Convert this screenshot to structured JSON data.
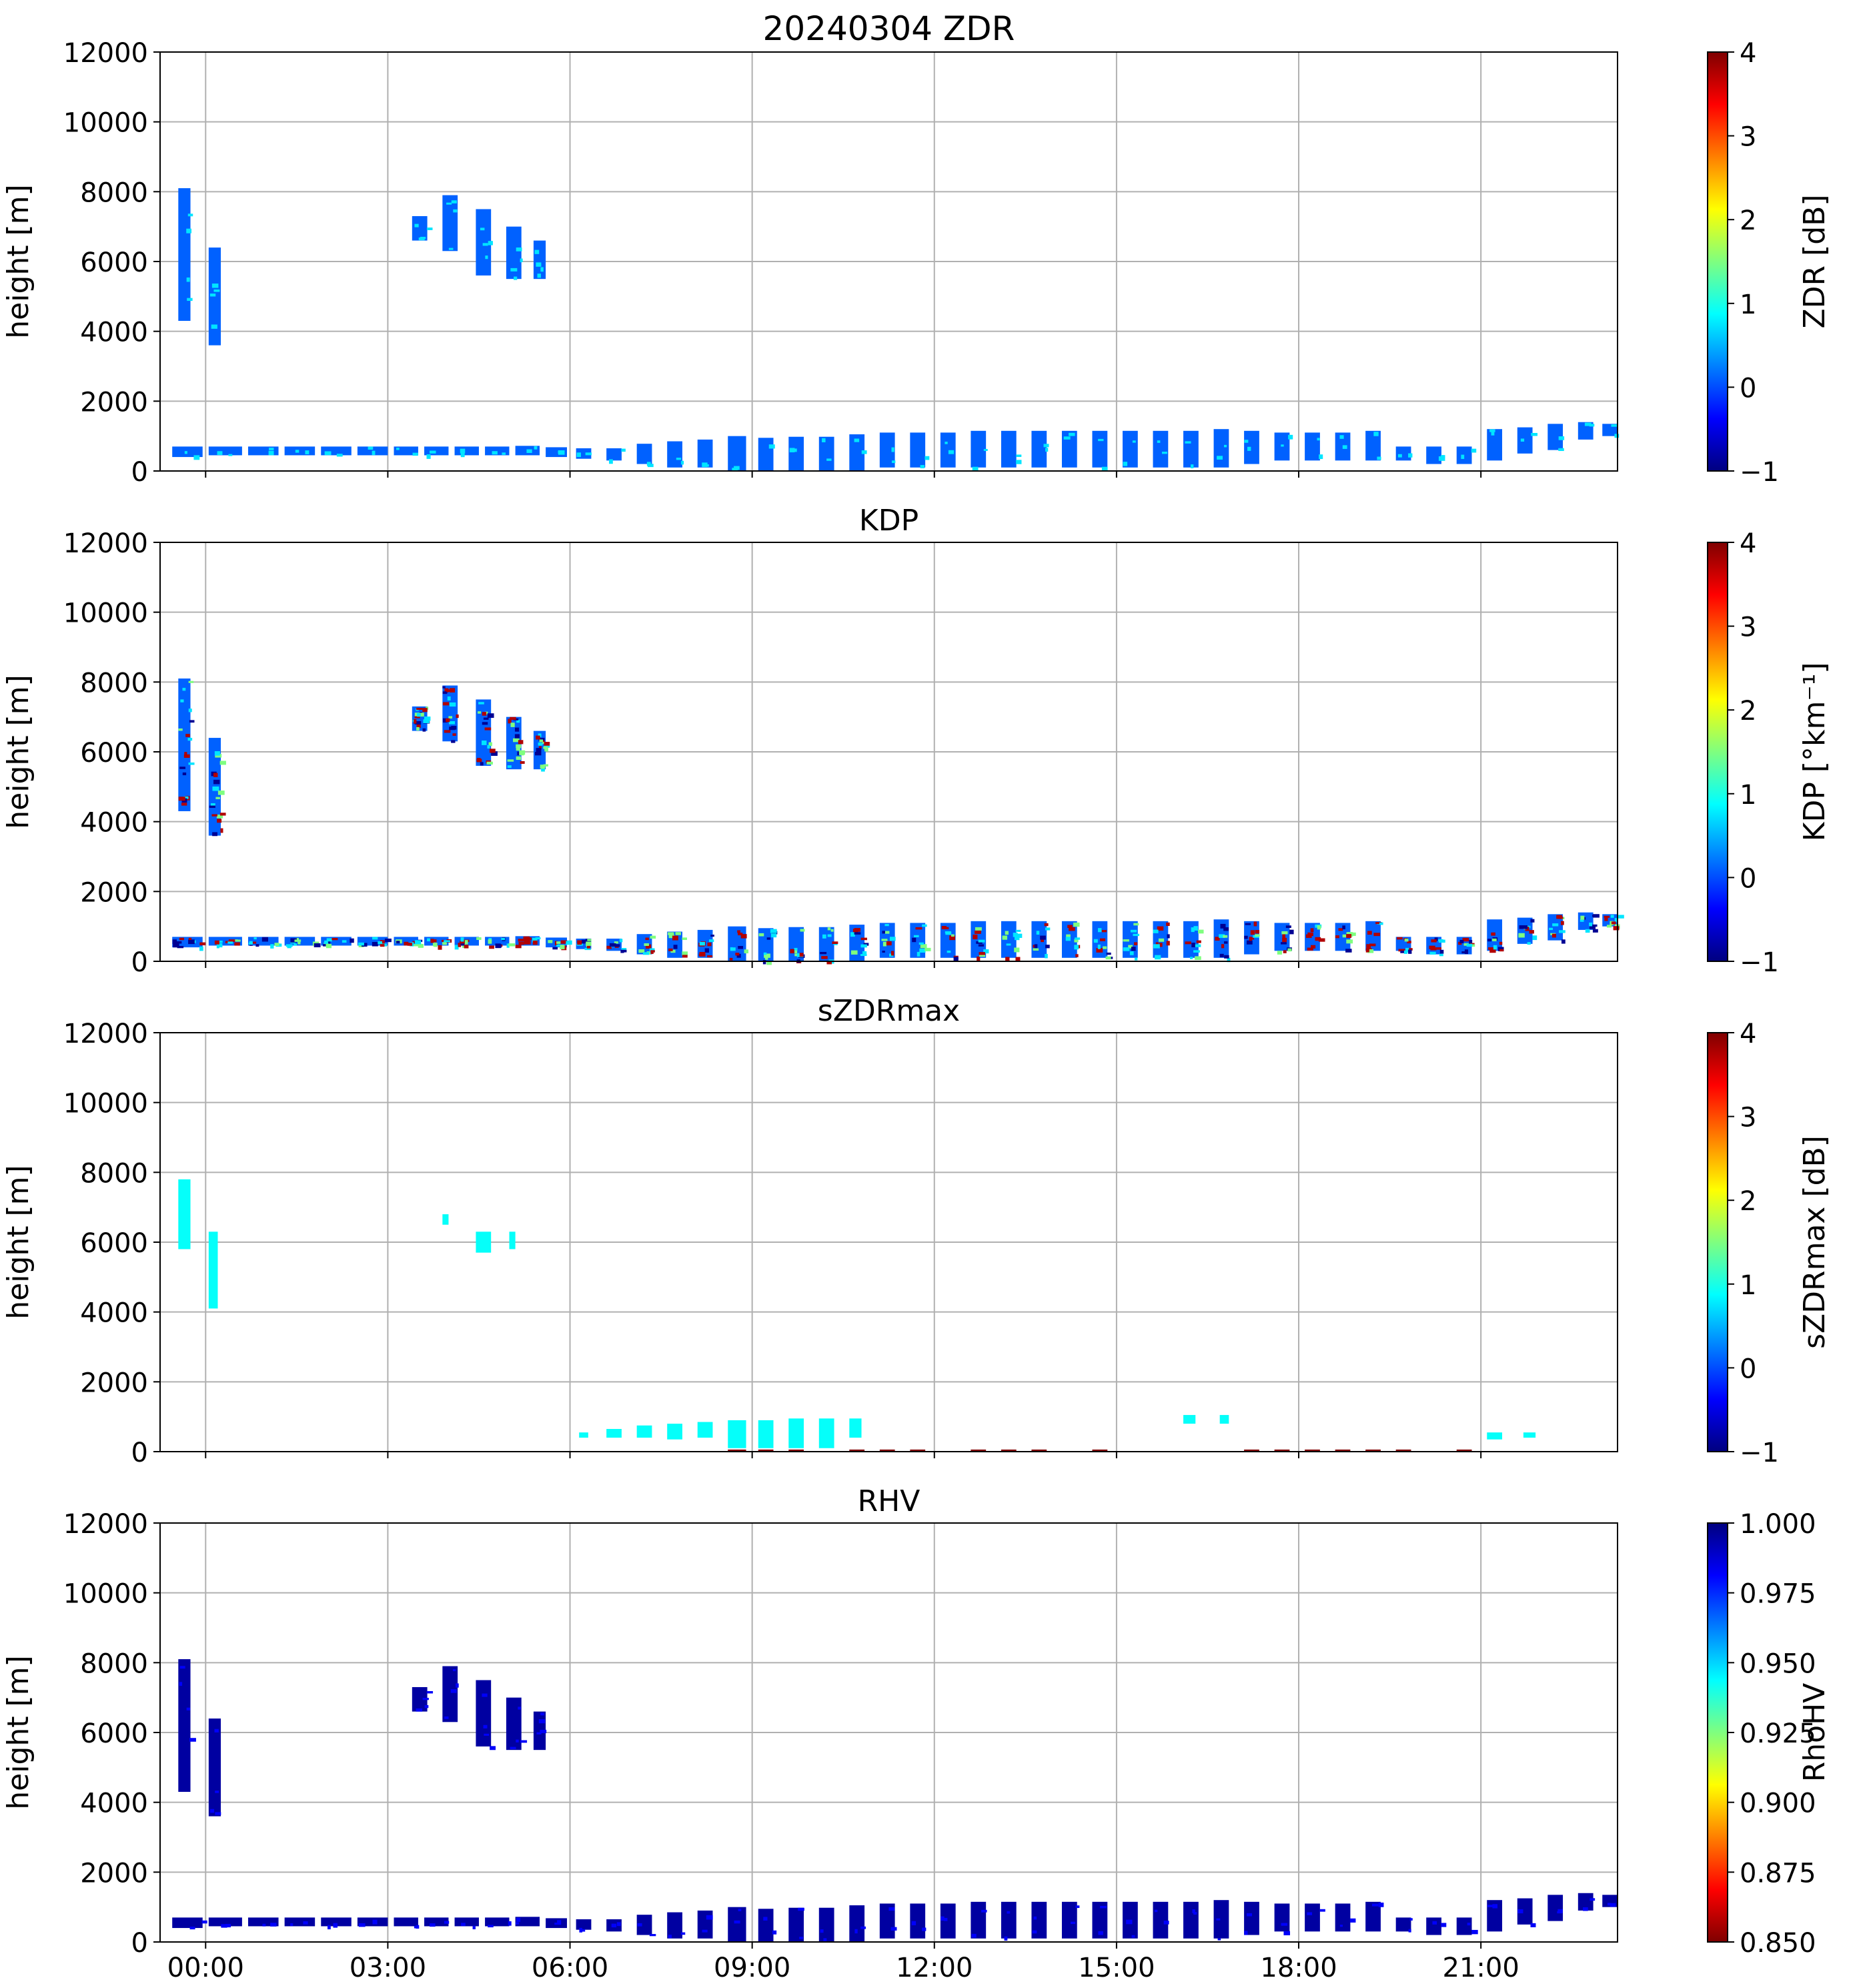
{
  "colors": {
    "ice_blue": "#1f6cf2",
    "cyan": "#19b8ee",
    "dark_red": "#7f0000",
    "grid": "#b0b0b0",
    "jet_stops": [
      "#00007f",
      "#0000ff",
      "#007fff",
      "#00ffff",
      "#7fff7f",
      "#ffff00",
      "#ff7f00",
      "#ff0000",
      "#7f0000"
    ]
  },
  "chart_data": [
    {
      "type": "heatmap",
      "title": "20240304 ZDR",
      "ylabel": "height [m]",
      "y_ticks": [
        0,
        2000,
        4000,
        6000,
        8000,
        10000,
        12000
      ],
      "ylim": [
        0,
        12000
      ],
      "x_ticks": [
        "00:00",
        "03:00",
        "06:00",
        "09:00",
        "12:00",
        "15:00",
        "18:00",
        "21:00"
      ],
      "xlim_hours": [
        -0.75,
        23.25
      ],
      "grid": true,
      "colorbar": {
        "label": "ZDR [dB]",
        "range": [
          -1,
          4
        ],
        "ticks": [
          "4",
          "3",
          "2",
          "1",
          "0",
          "−1"
        ],
        "cmap": "jet"
      },
      "dominant_value": 0.1
    },
    {
      "type": "heatmap",
      "title": "KDP",
      "ylabel": "height [m]",
      "y_ticks": [
        0,
        2000,
        4000,
        6000,
        8000,
        10000,
        12000
      ],
      "ylim": [
        0,
        12000
      ],
      "x_ticks": [
        "00:00",
        "03:00",
        "06:00",
        "09:00",
        "12:00",
        "15:00",
        "18:00",
        "21:00"
      ],
      "xlim_hours": [
        -0.75,
        23.25
      ],
      "grid": true,
      "colorbar": {
        "label": "KDP [°km⁻¹]",
        "range": [
          -1,
          4
        ],
        "ticks": [
          "4",
          "3",
          "2",
          "1",
          "0",
          "−1"
        ],
        "cmap": "jet"
      },
      "dominant_value": 0.1
    },
    {
      "type": "heatmap",
      "title": "sZDRmax",
      "ylabel": "height [m]",
      "y_ticks": [
        0,
        2000,
        4000,
        6000,
        8000,
        10000,
        12000
      ],
      "ylim": [
        0,
        12000
      ],
      "x_ticks": [
        "00:00",
        "03:00",
        "06:00",
        "09:00",
        "12:00",
        "15:00",
        "18:00",
        "21:00"
      ],
      "xlim_hours": [
        -0.75,
        23.25
      ],
      "grid": true,
      "colorbar": {
        "label": "sZDRmax [dB]",
        "range": [
          -1,
          4
        ],
        "ticks": [
          "4",
          "3",
          "2",
          "1",
          "0",
          "−1"
        ],
        "cmap": "jet"
      },
      "dominant_value": 0.9
    },
    {
      "type": "heatmap",
      "title": "RHV",
      "ylabel": "height [m]",
      "y_ticks": [
        0,
        2000,
        4000,
        6000,
        8000,
        10000,
        12000
      ],
      "ylim": [
        0,
        12000
      ],
      "x_ticks": [
        "00:00",
        "03:00",
        "06:00",
        "09:00",
        "12:00",
        "15:00",
        "18:00",
        "21:00"
      ],
      "xlim_hours": [
        -0.75,
        23.25
      ],
      "grid": true,
      "colorbar": {
        "label": "RhoHV",
        "range": [
          0.85,
          1.0
        ],
        "ticks": [
          "1.000",
          "0.975",
          "0.950",
          "0.925",
          "0.900",
          "0.875",
          "0.850"
        ],
        "cmap": "jet_r"
      },
      "dominant_value": 0.995
    }
  ],
  "echo_blocks": {
    "upper_cloud": [
      {
        "t": [
          -0.45,
          -0.25
        ],
        "h": [
          4300,
          8100
        ]
      },
      {
        "t": [
          0.05,
          0.25
        ],
        "h": [
          3600,
          6400
        ]
      },
      {
        "t": [
          3.4,
          3.65
        ],
        "h": [
          6600,
          7300
        ]
      },
      {
        "t": [
          3.9,
          4.15
        ],
        "h": [
          6300,
          7900
        ]
      },
      {
        "t": [
          4.45,
          4.7
        ],
        "h": [
          5600,
          7500
        ]
      },
      {
        "t": [
          4.95,
          5.2
        ],
        "h": [
          5500,
          7000
        ]
      },
      {
        "t": [
          5.4,
          5.6
        ],
        "h": [
          5500,
          6600
        ]
      }
    ],
    "low_cloud": [
      {
        "t": [
          -0.55,
          -0.05
        ],
        "h": [
          400,
          700
        ]
      },
      {
        "t": [
          0.05,
          0.6
        ],
        "h": [
          450,
          700
        ]
      },
      {
        "t": [
          0.7,
          1.2
        ],
        "h": [
          450,
          700
        ]
      },
      {
        "t": [
          1.3,
          1.8
        ],
        "h": [
          450,
          700
        ]
      },
      {
        "t": [
          1.9,
          2.4
        ],
        "h": [
          450,
          700
        ]
      },
      {
        "t": [
          2.5,
          3.0
        ],
        "h": [
          450,
          700
        ]
      },
      {
        "t": [
          3.1,
          3.5
        ],
        "h": [
          450,
          700
        ]
      },
      {
        "t": [
          3.6,
          4.0
        ],
        "h": [
          450,
          700
        ]
      },
      {
        "t": [
          4.1,
          4.5
        ],
        "h": [
          450,
          700
        ]
      },
      {
        "t": [
          4.6,
          5.0
        ],
        "h": [
          450,
          700
        ]
      },
      {
        "t": [
          5.1,
          5.5
        ],
        "h": [
          450,
          720
        ]
      },
      {
        "t": [
          5.6,
          5.95
        ],
        "h": [
          400,
          680
        ]
      },
      {
        "t": [
          6.1,
          6.35
        ],
        "h": [
          350,
          650
        ]
      },
      {
        "t": [
          6.6,
          6.85
        ],
        "h": [
          300,
          650
        ]
      },
      {
        "t": [
          7.1,
          7.35
        ],
        "h": [
          200,
          780
        ]
      },
      {
        "t": [
          7.6,
          7.85
        ],
        "h": [
          100,
          850
        ]
      },
      {
        "t": [
          8.1,
          8.35
        ],
        "h": [
          100,
          900
        ]
      },
      {
        "t": [
          8.6,
          8.9
        ],
        "h": [
          0,
          1000
        ]
      },
      {
        "t": [
          9.1,
          9.35
        ],
        "h": [
          0,
          950
        ]
      },
      {
        "t": [
          9.6,
          9.85
        ],
        "h": [
          0,
          980
        ]
      },
      {
        "t": [
          10.1,
          10.35
        ],
        "h": [
          0,
          980
        ]
      },
      {
        "t": [
          10.6,
          10.85
        ],
        "h": [
          0,
          1050
        ]
      },
      {
        "t": [
          11.1,
          11.35
        ],
        "h": [
          100,
          1100
        ]
      },
      {
        "t": [
          11.6,
          11.85
        ],
        "h": [
          100,
          1100
        ]
      },
      {
        "t": [
          12.1,
          12.35
        ],
        "h": [
          100,
          1100
        ]
      },
      {
        "t": [
          12.6,
          12.85
        ],
        "h": [
          100,
          1150
        ]
      },
      {
        "t": [
          13.1,
          13.35
        ],
        "h": [
          100,
          1150
        ]
      },
      {
        "t": [
          13.6,
          13.85
        ],
        "h": [
          100,
          1150
        ]
      },
      {
        "t": [
          14.1,
          14.35
        ],
        "h": [
          100,
          1150
        ]
      },
      {
        "t": [
          14.6,
          14.85
        ],
        "h": [
          100,
          1150
        ]
      },
      {
        "t": [
          15.1,
          15.35
        ],
        "h": [
          100,
          1150
        ]
      },
      {
        "t": [
          15.6,
          15.85
        ],
        "h": [
          100,
          1150
        ]
      },
      {
        "t": [
          16.1,
          16.35
        ],
        "h": [
          100,
          1150
        ]
      },
      {
        "t": [
          16.6,
          16.85
        ],
        "h": [
          100,
          1200
        ]
      },
      {
        "t": [
          17.1,
          17.35
        ],
        "h": [
          200,
          1150
        ]
      },
      {
        "t": [
          17.6,
          17.85
        ],
        "h": [
          300,
          1100
        ]
      },
      {
        "t": [
          18.1,
          18.35
        ],
        "h": [
          300,
          1100
        ]
      },
      {
        "t": [
          18.6,
          18.85
        ],
        "h": [
          300,
          1100
        ]
      },
      {
        "t": [
          19.1,
          19.35
        ],
        "h": [
          300,
          1150
        ]
      },
      {
        "t": [
          19.6,
          19.85
        ],
        "h": [
          300,
          700
        ]
      },
      {
        "t": [
          20.1,
          20.35
        ],
        "h": [
          200,
          700
        ]
      },
      {
        "t": [
          20.6,
          20.85
        ],
        "h": [
          200,
          700
        ]
      },
      {
        "t": [
          21.1,
          21.35
        ],
        "h": [
          300,
          1200
        ]
      },
      {
        "t": [
          21.6,
          21.85
        ],
        "h": [
          500,
          1250
        ]
      },
      {
        "t": [
          22.1,
          22.35
        ],
        "h": [
          600,
          1350
        ]
      },
      {
        "t": [
          22.6,
          22.85
        ],
        "h": [
          900,
          1400
        ]
      },
      {
        "t": [
          23.0,
          23.25
        ],
        "h": [
          1000,
          1350
        ]
      }
    ]
  },
  "szdr_blocks": [
    {
      "t": [
        -0.45,
        -0.25
      ],
      "h": [
        5800,
        7800
      ]
    },
    {
      "t": [
        0.05,
        0.2
      ],
      "h": [
        4100,
        6300
      ]
    },
    {
      "t": [
        3.9,
        4.0
      ],
      "h": [
        6500,
        6800
      ]
    },
    {
      "t": [
        4.45,
        4.7
      ],
      "h": [
        5700,
        6300
      ]
    },
    {
      "t": [
        5.0,
        5.1
      ],
      "h": [
        5800,
        6300
      ]
    },
    {
      "t": [
        6.15,
        6.3
      ],
      "h": [
        400,
        550
      ]
    },
    {
      "t": [
        6.6,
        6.85
      ],
      "h": [
        400,
        650
      ]
    },
    {
      "t": [
        7.1,
        7.35
      ],
      "h": [
        400,
        750
      ]
    },
    {
      "t": [
        7.6,
        7.85
      ],
      "h": [
        350,
        800
      ]
    },
    {
      "t": [
        8.1,
        8.35
      ],
      "h": [
        400,
        850
      ]
    },
    {
      "t": [
        8.6,
        8.9
      ],
      "h": [
        100,
        900
      ]
    },
    {
      "t": [
        9.1,
        9.35
      ],
      "h": [
        100,
        900
      ]
    },
    {
      "t": [
        9.6,
        9.85
      ],
      "h": [
        100,
        950
      ]
    },
    {
      "t": [
        10.1,
        10.35
      ],
      "h": [
        100,
        950
      ]
    },
    {
      "t": [
        10.6,
        10.8
      ],
      "h": [
        400,
        950
      ]
    },
    {
      "t": [
        16.1,
        16.3
      ],
      "h": [
        800,
        1050
      ]
    },
    {
      "t": [
        16.7,
        16.85
      ],
      "h": [
        800,
        1050
      ]
    },
    {
      "t": [
        21.1,
        21.35
      ],
      "h": [
        350,
        550
      ]
    },
    {
      "t": [
        21.7,
        21.9
      ],
      "h": [
        400,
        550
      ]
    }
  ]
}
